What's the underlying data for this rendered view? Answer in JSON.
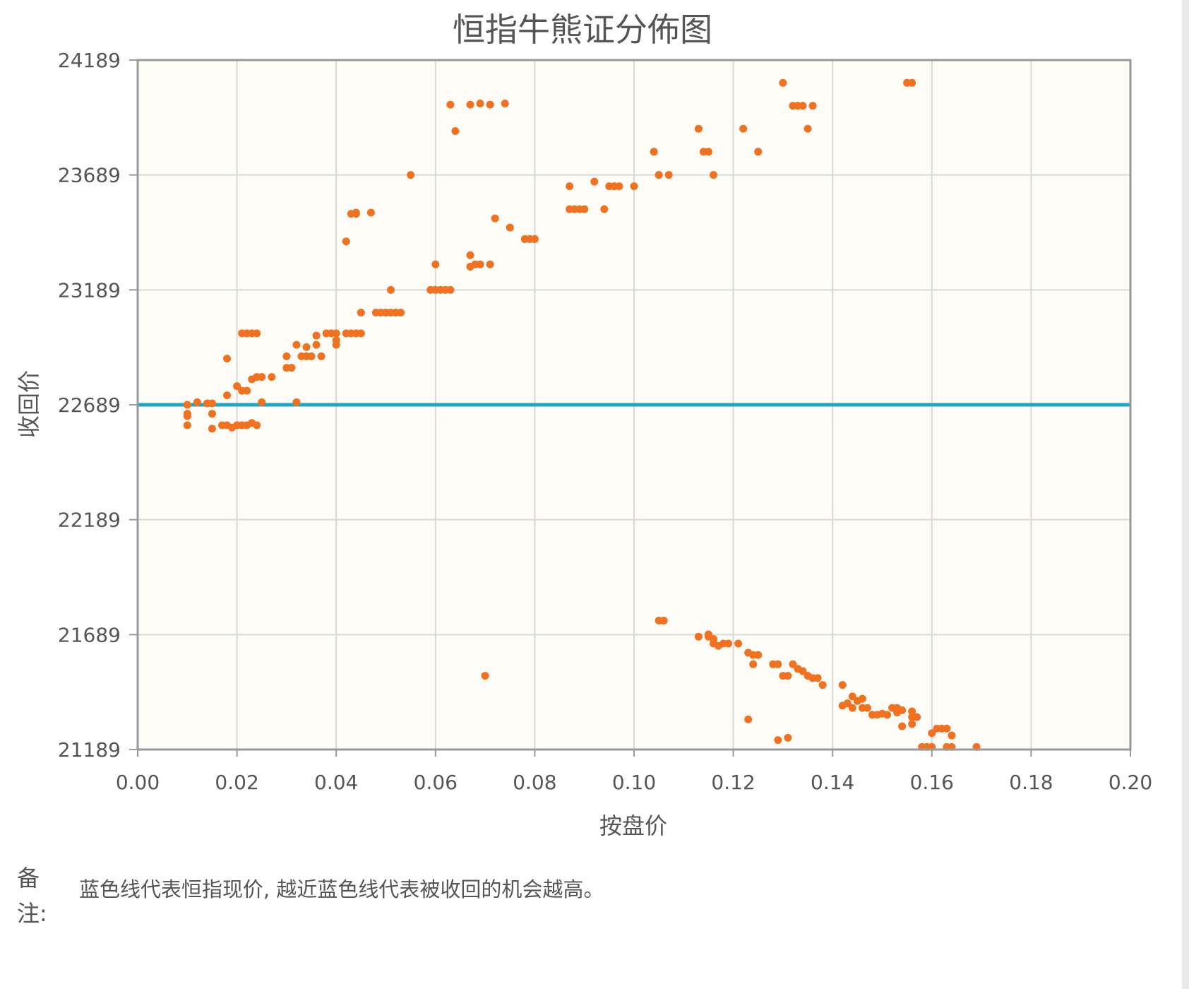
{
  "colors": {
    "plot_background": "#fdfcf6",
    "grid": "#d9d9d9",
    "axis": "#999999",
    "point": "#f07220",
    "reference_line": "#1ea7c4"
  },
  "chart_data": {
    "type": "scatter",
    "title": "恒指牛熊证分佈图",
    "xlabel": "按盘价",
    "ylabel": "收回价",
    "xlim": [
      0,
      0.2
    ],
    "ylim": [
      21189,
      24189
    ],
    "x_ticks": [
      "0.00",
      "0.02",
      "0.04",
      "0.06",
      "0.08",
      "0.10",
      "0.12",
      "0.14",
      "0.16",
      "0.18",
      "0.20"
    ],
    "y_ticks": [
      "21189",
      "21689",
      "22189",
      "22689",
      "23189",
      "23689",
      "24189"
    ],
    "grid": true,
    "reference_line": {
      "y": 22689
    },
    "points": [
      [
        0.01,
        22689
      ],
      [
        0.01,
        22650
      ],
      [
        0.01,
        22640
      ],
      [
        0.01,
        22600
      ],
      [
        0.012,
        22700
      ],
      [
        0.014,
        22695
      ],
      [
        0.015,
        22695
      ],
      [
        0.015,
        22650
      ],
      [
        0.015,
        22585
      ],
      [
        0.017,
        22600
      ],
      [
        0.018,
        22600
      ],
      [
        0.018,
        22730
      ],
      [
        0.018,
        22890
      ],
      [
        0.019,
        22590
      ],
      [
        0.02,
        22600
      ],
      [
        0.02,
        22770
      ],
      [
        0.021,
        22600
      ],
      [
        0.021,
        22750
      ],
      [
        0.021,
        23000
      ],
      [
        0.022,
        22600
      ],
      [
        0.022,
        22750
      ],
      [
        0.022,
        23000
      ],
      [
        0.023,
        22610
      ],
      [
        0.023,
        23000
      ],
      [
        0.023,
        22800
      ],
      [
        0.024,
        22600
      ],
      [
        0.024,
        23000
      ],
      [
        0.024,
        22810
      ],
      [
        0.025,
        22810
      ],
      [
        0.025,
        22700
      ],
      [
        0.027,
        22810
      ],
      [
        0.03,
        22900
      ],
      [
        0.03,
        22850
      ],
      [
        0.031,
        22850
      ],
      [
        0.032,
        22950
      ],
      [
        0.032,
        22700
      ],
      [
        0.033,
        22900
      ],
      [
        0.034,
        22940
      ],
      [
        0.034,
        22900
      ],
      [
        0.035,
        22900
      ],
      [
        0.036,
        22950
      ],
      [
        0.036,
        22990
      ],
      [
        0.037,
        22900
      ],
      [
        0.038,
        23000
      ],
      [
        0.039,
        23000
      ],
      [
        0.04,
        23000
      ],
      [
        0.04,
        22950
      ],
      [
        0.04,
        22970
      ],
      [
        0.042,
        23000
      ],
      [
        0.043,
        23000
      ],
      [
        0.044,
        23000
      ],
      [
        0.045,
        23000
      ],
      [
        0.045,
        23090
      ],
      [
        0.048,
        23090
      ],
      [
        0.049,
        23090
      ],
      [
        0.05,
        23090
      ],
      [
        0.051,
        23090
      ],
      [
        0.051,
        23189
      ],
      [
        0.052,
        23090
      ],
      [
        0.053,
        23090
      ],
      [
        0.042,
        23400
      ],
      [
        0.043,
        23520
      ],
      [
        0.044,
        23520
      ],
      [
        0.044,
        23525
      ],
      [
        0.047,
        23525
      ],
      [
        0.055,
        23689
      ],
      [
        0.059,
        23189
      ],
      [
        0.06,
        23189
      ],
      [
        0.061,
        23189
      ],
      [
        0.062,
        23189
      ],
      [
        0.063,
        23189
      ],
      [
        0.06,
        23300
      ],
      [
        0.063,
        23995
      ],
      [
        0.064,
        23880
      ],
      [
        0.067,
        23995
      ],
      [
        0.069,
        24000
      ],
      [
        0.071,
        23995
      ],
      [
        0.074,
        24000
      ],
      [
        0.067,
        23340
      ],
      [
        0.067,
        23290
      ],
      [
        0.068,
        23300
      ],
      [
        0.069,
        23300
      ],
      [
        0.071,
        23300
      ],
      [
        0.072,
        23500
      ],
      [
        0.075,
        23460
      ],
      [
        0.078,
        23410
      ],
      [
        0.079,
        23410
      ],
      [
        0.08,
        23410
      ],
      [
        0.087,
        23640
      ],
      [
        0.087,
        23540
      ],
      [
        0.088,
        23540
      ],
      [
        0.089,
        23540
      ],
      [
        0.09,
        23540
      ],
      [
        0.092,
        23660
      ],
      [
        0.094,
        23540
      ],
      [
        0.095,
        23640
      ],
      [
        0.096,
        23640
      ],
      [
        0.097,
        23640
      ],
      [
        0.1,
        23640
      ],
      [
        0.104,
        23790
      ],
      [
        0.105,
        23689
      ],
      [
        0.107,
        23689
      ],
      [
        0.113,
        23890
      ],
      [
        0.114,
        23790
      ],
      [
        0.115,
        23790
      ],
      [
        0.116,
        23689
      ],
      [
        0.122,
        23890
      ],
      [
        0.125,
        23790
      ],
      [
        0.13,
        24090
      ],
      [
        0.132,
        23990
      ],
      [
        0.133,
        23990
      ],
      [
        0.134,
        23990
      ],
      [
        0.135,
        23890
      ],
      [
        0.136,
        23990
      ],
      [
        0.155,
        24090
      ],
      [
        0.156,
        24090
      ],
      [
        0.105,
        21750
      ],
      [
        0.106,
        21750
      ],
      [
        0.07,
        21510
      ],
      [
        0.113,
        21680
      ],
      [
        0.115,
        21690
      ],
      [
        0.115,
        21680
      ],
      [
        0.116,
        21670
      ],
      [
        0.116,
        21650
      ],
      [
        0.117,
        21640
      ],
      [
        0.118,
        21650
      ],
      [
        0.119,
        21650
      ],
      [
        0.121,
        21650
      ],
      [
        0.123,
        21610
      ],
      [
        0.124,
        21600
      ],
      [
        0.124,
        21560
      ],
      [
        0.125,
        21600
      ],
      [
        0.128,
        21560
      ],
      [
        0.129,
        21560
      ],
      [
        0.13,
        21510
      ],
      [
        0.131,
        21510
      ],
      [
        0.132,
        21560
      ],
      [
        0.133,
        21540
      ],
      [
        0.134,
        21530
      ],
      [
        0.135,
        21510
      ],
      [
        0.136,
        21500
      ],
      [
        0.137,
        21500
      ],
      [
        0.138,
        21470
      ],
      [
        0.142,
        21470
      ],
      [
        0.142,
        21380
      ],
      [
        0.143,
        21390
      ],
      [
        0.144,
        21420
      ],
      [
        0.144,
        21370
      ],
      [
        0.145,
        21400
      ],
      [
        0.146,
        21370
      ],
      [
        0.146,
        21410
      ],
      [
        0.147,
        21370
      ],
      [
        0.148,
        21340
      ],
      [
        0.149,
        21340
      ],
      [
        0.15,
        21345
      ],
      [
        0.151,
        21340
      ],
      [
        0.152,
        21370
      ],
      [
        0.153,
        21370
      ],
      [
        0.153,
        21350
      ],
      [
        0.154,
        21290
      ],
      [
        0.154,
        21360
      ],
      [
        0.156,
        21355
      ],
      [
        0.156,
        21330
      ],
      [
        0.156,
        21300
      ],
      [
        0.157,
        21330
      ],
      [
        0.158,
        21200
      ],
      [
        0.159,
        21200
      ],
      [
        0.16,
        21200
      ],
      [
        0.16,
        21260
      ],
      [
        0.161,
        21280
      ],
      [
        0.162,
        21280
      ],
      [
        0.163,
        21200
      ],
      [
        0.163,
        21280
      ],
      [
        0.164,
        21250
      ],
      [
        0.164,
        21200
      ],
      [
        0.169,
        21200
      ],
      [
        0.123,
        21320
      ],
      [
        0.129,
        21230
      ],
      [
        0.131,
        21240
      ]
    ]
  },
  "note": {
    "label": "备注:",
    "text": "蓝色线代表恒指现价, 越近蓝色线代表被收回的机会越高。"
  }
}
